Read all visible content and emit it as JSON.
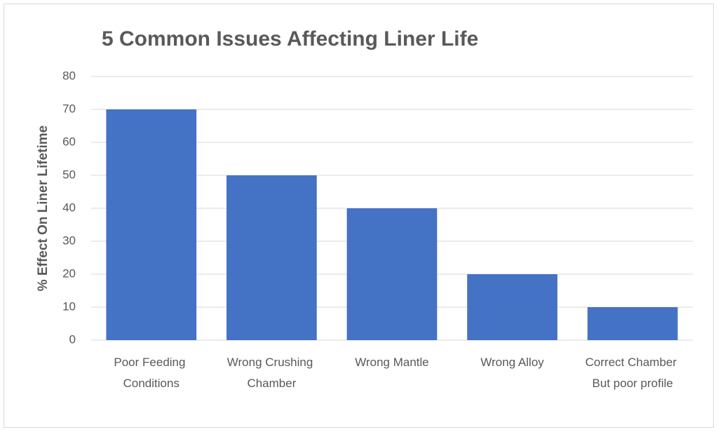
{
  "chart_data": {
    "type": "bar",
    "title": "5 Common Issues Affecting Liner Life",
    "y_label": "% Effect On Liner Lifetime",
    "categories": [
      "Poor Feeding Conditions",
      "Wrong Crushing Chamber",
      "Wrong Mantle",
      "Wrong Alloy",
      "Correct Chamber But poor profile"
    ],
    "values": [
      70,
      50,
      40,
      20,
      10
    ],
    "color": "#4472c4",
    "ylim": [
      0,
      80
    ],
    "yticks": [
      0,
      10,
      20,
      30,
      40,
      50,
      60,
      70,
      80
    ],
    "grid": true
  }
}
